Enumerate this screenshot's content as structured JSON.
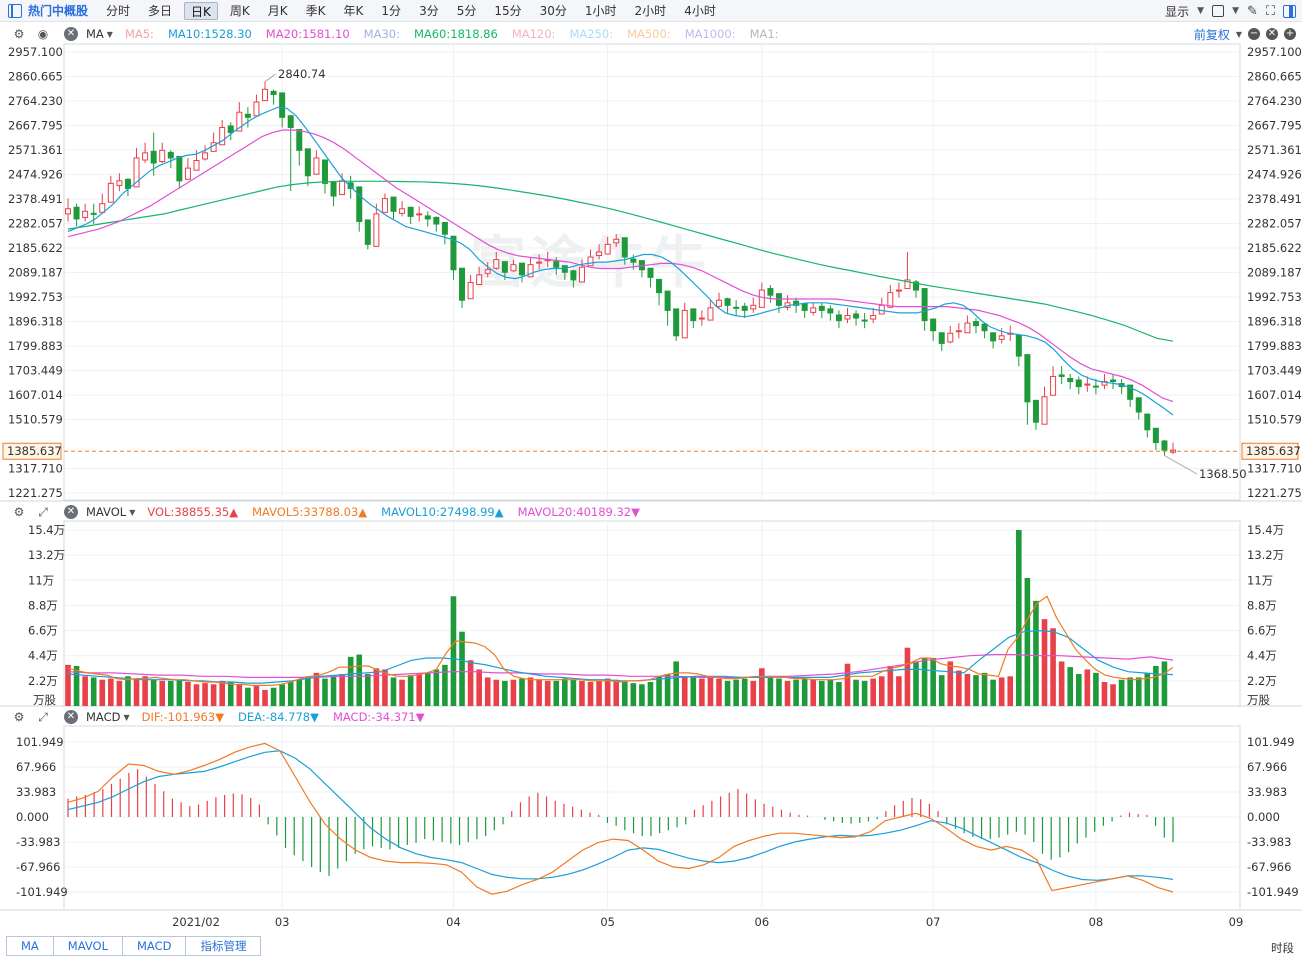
{
  "toolbar": {
    "title": "热门中概股",
    "periods": [
      "分时",
      "多日",
      "日K",
      "周K",
      "月K",
      "季K",
      "年K",
      "1分",
      "3分",
      "5分",
      "15分",
      "30分",
      "1小时",
      "2小时",
      "4小时"
    ],
    "active_period": "日K",
    "display_label": "显示",
    "adjust_label": "前复权"
  },
  "indicators": {
    "main": {
      "name": "MA",
      "items": [
        {
          "label": "MA5:",
          "color": "#f4a3a3"
        },
        {
          "label": "MA10:1528.30",
          "color": "#1aa0d8"
        },
        {
          "label": "MA20:1581.10",
          "color": "#e24ed6"
        },
        {
          "label": "MA30:",
          "color": "#9fb5e8"
        },
        {
          "label": "MA60:1818.86",
          "color": "#15b66b"
        },
        {
          "label": "MA120:",
          "color": "#f4b3c4"
        },
        {
          "label": "MA250:",
          "color": "#a8dcf5"
        },
        {
          "label": "MA500:",
          "color": "#f7cc9c"
        },
        {
          "label": "MA1000:",
          "color": "#c7b6ef"
        },
        {
          "label": "MA1:",
          "color": "#b7b7b7"
        }
      ]
    },
    "volume": {
      "name": "MAVOL",
      "items": [
        {
          "label": "VOL:38855.35▲",
          "color": "#e8414a"
        },
        {
          "label": "MAVOL5:33788.03▲",
          "color": "#f07b25"
        },
        {
          "label": "MAVOL10:27498.99▲",
          "color": "#1aa0d8"
        },
        {
          "label": "MAVOL20:40189.32▼",
          "color": "#e24ed6"
        }
      ]
    },
    "macd": {
      "name": "MACD",
      "items": [
        {
          "label": "DIF:-101.963▼",
          "color": "#f07b25"
        },
        {
          "label": "DEA:-84.778▼",
          "color": "#1aa0d8"
        },
        {
          "label": "MACD:-34.371▼",
          "color": "#e24ed6"
        }
      ]
    }
  },
  "price_axis": [
    "2957.100",
    "2860.665",
    "2764.230",
    "2667.795",
    "2571.361",
    "2474.926",
    "2378.491",
    "2282.057",
    "2185.622",
    "2089.187",
    "1992.753",
    "1896.318",
    "1799.883",
    "1703.449",
    "1607.014",
    "1510.579",
    "1317.710",
    "1221.275"
  ],
  "volume_axis": [
    "15.4万",
    "13.2万",
    "11万",
    "8.8万",
    "6.6万",
    "4.4万",
    "2.2万",
    "万股"
  ],
  "macd_axis": [
    "101.949",
    "67.966",
    "33.983",
    "0.000",
    "-33.983",
    "-67.966",
    "-101.949"
  ],
  "time_axis": [
    "2021/02",
    "03",
    "04",
    "05",
    "06",
    "07",
    "08",
    "09"
  ],
  "time_label": "时段",
  "current_price": "1385.637",
  "max_label": "2840.74",
  "min_label": "1368.50",
  "watermark": "富途牛牛",
  "bottom_tabs": [
    "MA",
    "MAVOL",
    "MACD",
    "指标管理"
  ],
  "chart_data": {
    "type": "candlestick",
    "title": "热门中概股",
    "period": "日K",
    "start_date": "2021-01-22",
    "up_color": "#e8414a",
    "down_color": "#1f9a3b",
    "price_range": [
      1221.275,
      2957.1
    ],
    "volume_range_wan": [
      0,
      15.4
    ],
    "macd_range": [
      -101.949,
      101.949
    ],
    "closes": [
      2340,
      2300,
      2330,
      2320,
      2360,
      2440,
      2450,
      2420,
      2540,
      2560,
      2520,
      2570,
      2540,
      2450,
      2500,
      2530,
      2560,
      2600,
      2660,
      2640,
      2720,
      2700,
      2760,
      2810,
      2790,
      2700,
      2660,
      2570,
      2470,
      2540,
      2440,
      2390,
      2450,
      2420,
      2290,
      2200,
      2320,
      2380,
      2330,
      2340,
      2310,
      2320,
      2300,
      2280,
      2240,
      2100,
      1980,
      2050,
      2080,
      2100,
      2140,
      2090,
      2120,
      2080,
      2120,
      2130,
      2140,
      2110,
      2090,
      2060,
      2110,
      2150,
      2170,
      2200,
      2220,
      2150,
      2130,
      2100,
      2070,
      2010,
      1940,
      1840,
      1940,
      1900,
      1910,
      1950,
      1980,
      1960,
      1950,
      1940,
      1960,
      2020,
      2000,
      1960,
      1970,
      1960,
      1940,
      1950,
      1940,
      1930,
      1900,
      1920,
      1910,
      1900,
      1920,
      1960,
      2010,
      2020,
      2060,
      2020,
      1900,
      1860,
      1810,
      1850,
      1860,
      1890,
      1880,
      1860,
      1820,
      1840,
      1850,
      1760,
      1580,
      1500,
      1600,
      1680,
      1680,
      1660,
      1640,
      1650,
      1640,
      1660,
      1660,
      1640,
      1590,
      1540,
      1470,
      1420,
      1390,
      1390
    ],
    "highs": [
      2380,
      2360,
      2360,
      2360,
      2400,
      2470,
      2480,
      2460,
      2580,
      2600,
      2640,
      2600,
      2570,
      2480,
      2540,
      2570,
      2590,
      2640,
      2690,
      2680,
      2760,
      2740,
      2790,
      2840.74,
      2810,
      2740,
      2710,
      2640,
      2540,
      2570,
      2490,
      2440,
      2480,
      2470,
      2320,
      2240,
      2360,
      2400,
      2380,
      2370,
      2340,
      2350,
      2330,
      2310,
      2280,
      2140,
      2060,
      2080,
      2110,
      2130,
      2170,
      2130,
      2140,
      2120,
      2150,
      2160,
      2170,
      2150,
      2110,
      2100,
      2140,
      2180,
      2200,
      2230,
      2240,
      2190,
      2160,
      2130,
      2100,
      2050,
      1980,
      1900,
      1970,
      1930,
      1940,
      1980,
      2010,
      1990,
      1980,
      1970,
      1990,
      2050,
      2040,
      1990,
      2000,
      1990,
      1970,
      1970,
      1970,
      1960,
      1940,
      1950,
      1940,
      1930,
      1950,
      1990,
      2040,
      2050,
      2170,
      2060,
      1940,
      1900,
      1850,
      1880,
      1890,
      1920,
      1910,
      1890,
      1850,
      1870,
      1880,
      1800,
      1680,
      1560,
      1640,
      1720,
      1720,
      1690,
      1680,
      1680,
      1670,
      1690,
      1690,
      1670,
      1630,
      1590,
      1500,
      1460,
      1430,
      1420
    ],
    "lows": [
      2290,
      2270,
      2290,
      2280,
      2320,
      2400,
      2410,
      2390,
      2500,
      2520,
      2470,
      2520,
      2500,
      2420,
      2460,
      2490,
      2530,
      2570,
      2620,
      2610,
      2680,
      2660,
      2720,
      2770,
      2750,
      2660,
      2410,
      2510,
      2430,
      2500,
      2400,
      2350,
      2400,
      2380,
      2250,
      2180,
      2280,
      2340,
      2300,
      2310,
      2280,
      2290,
      2270,
      2250,
      2200,
      2060,
      1950,
      2010,
      2050,
      2070,
      2100,
      2060,
      2090,
      2050,
      2080,
      2100,
      2110,
      2080,
      2060,
      2030,
      2070,
      2120,
      2140,
      2170,
      2190,
      2120,
      2100,
      2070,
      2030,
      1960,
      1880,
      1820,
      1890,
      1870,
      1880,
      1920,
      1950,
      1930,
      1920,
      1910,
      1930,
      1980,
      1970,
      1930,
      1940,
      1930,
      1910,
      1920,
      1910,
      1900,
      1870,
      1890,
      1880,
      1870,
      1890,
      1930,
      1980,
      1990,
      2030,
      1990,
      1860,
      1820,
      1780,
      1810,
      1830,
      1860,
      1850,
      1830,
      1790,
      1810,
      1820,
      1720,
      1490,
      1470,
      1560,
      1640,
      1650,
      1630,
      1610,
      1620,
      1610,
      1630,
      1630,
      1610,
      1560,
      1510,
      1440,
      1390,
      1368.5,
      1375
    ],
    "volumes_wan": [
      3.6,
      3.5,
      2.6,
      2.5,
      2.3,
      2.4,
      2.2,
      2.6,
      2.4,
      2.6,
      2.3,
      2.2,
      2.2,
      2.3,
      2.1,
      1.9,
      2.0,
      1.9,
      2.2,
      2.1,
      1.9,
      1.6,
      1.8,
      1.4,
      1.6,
      1.9,
      2.1,
      2.3,
      2.6,
      2.9,
      2.4,
      2.6,
      2.8,
      4.3,
      4.5,
      2.8,
      3.3,
      3.2,
      2.5,
      2.3,
      2.7,
      2.8,
      2.9,
      3.2,
      3.6,
      9.6,
      6.5,
      4.0,
      3.2,
      2.5,
      2.3,
      2.2,
      2.3,
      2.4,
      2.5,
      2.3,
      2.2,
      2.2,
      2.4,
      2.3,
      2.2,
      2.1,
      2.2,
      2.4,
      2.3,
      2.1,
      2.0,
      1.9,
      2.1,
      2.6,
      2.8,
      3.9,
      2.6,
      2.5,
      2.4,
      2.6,
      2.4,
      2.2,
      2.3,
      2.4,
      2.2,
      3.3,
      2.6,
      2.4,
      2.2,
      2.3,
      2.4,
      2.3,
      2.2,
      2.3,
      2.1,
      3.7,
      2.3,
      2.2,
      2.4,
      2.6,
      3.5,
      2.6,
      5.1,
      3.9,
      4.2,
      4.2,
      2.7,
      3.9,
      3.1,
      2.8,
      2.7,
      2.9,
      2.3,
      2.5,
      2.6,
      15.4,
      11.2,
      9.2,
      7.6,
      6.8,
      3.9,
      3.4,
      2.8,
      3.2,
      2.9,
      2.1,
      1.9,
      2.3,
      2.5,
      2.5,
      2.9,
      3.5,
      3.9
    ],
    "ma10": [
      2250,
      2265,
      2280,
      2300,
      2330,
      2360,
      2400,
      2430,
      2460,
      2490,
      2510,
      2525,
      2540,
      2550,
      2555,
      2570,
      2590,
      2610,
      2640,
      2665,
      2690,
      2710,
      2725,
      2740,
      2735,
      2705,
      2660,
      2610,
      2560,
      2510,
      2460,
      2425,
      2390,
      2360,
      2335,
      2310,
      2290,
      2270,
      2260,
      2250,
      2240,
      2230,
      2220,
      2205,
      2180,
      2140,
      2110,
      2085,
      2070,
      2065,
      2075,
      2090,
      2100,
      2105,
      2105,
      2110,
      2120,
      2125,
      2130,
      2130,
      2135,
      2140,
      2150,
      2160,
      2160,
      2150,
      2130,
      2100,
      2065,
      2030,
      1995,
      1955,
      1930,
      1920,
      1915,
      1920,
      1930,
      1940,
      1950,
      1960,
      1965,
      1970,
      1970,
      1970,
      1965,
      1960,
      1955,
      1950,
      1945,
      1940,
      1935,
      1930,
      1930,
      1930,
      1940,
      1950,
      1965,
      1970,
      1960,
      1935,
      1900,
      1875,
      1860,
      1850,
      1845,
      1840,
      1830,
      1815,
      1785,
      1745,
      1710,
      1685,
      1670,
      1660,
      1655,
      1650,
      1640,
      1625,
      1605,
      1580,
      1555,
      1528.3
    ],
    "ma20": [
      2230,
      2240,
      2250,
      2260,
      2275,
      2290,
      2310,
      2330,
      2350,
      2375,
      2400,
      2425,
      2450,
      2475,
      2500,
      2525,
      2550,
      2575,
      2600,
      2625,
      2640,
      2650,
      2650,
      2645,
      2635,
      2620,
      2600,
      2575,
      2545,
      2515,
      2485,
      2455,
      2425,
      2400,
      2375,
      2350,
      2325,
      2300,
      2275,
      2250,
      2225,
      2200,
      2180,
      2165,
      2155,
      2150,
      2145,
      2140,
      2135,
      2130,
      2120,
      2110,
      2105,
      2105,
      2105,
      2110,
      2115,
      2120,
      2125,
      2125,
      2120,
      2110,
      2095,
      2075,
      2055,
      2035,
      2015,
      2000,
      1990,
      1985,
      1985,
      1985,
      1985,
      1985,
      1985,
      1985,
      1980,
      1975,
      1970,
      1965,
      1960,
      1955,
      1955,
      1955,
      1955,
      1955,
      1955,
      1950,
      1945,
      1940,
      1930,
      1920,
      1905,
      1890,
      1870,
      1845,
      1815,
      1785,
      1755,
      1730,
      1710,
      1700,
      1690,
      1680,
      1665,
      1645,
      1620,
      1595,
      1581.1
    ],
    "ma60": [
      2260,
      2270,
      2280,
      2290,
      2300,
      2310,
      2320,
      2335,
      2350,
      2365,
      2380,
      2395,
      2410,
      2425,
      2435,
      2442,
      2446,
      2448,
      2448,
      2448,
      2448,
      2447,
      2446,
      2444,
      2440,
      2435,
      2428,
      2420,
      2410,
      2400,
      2390,
      2378,
      2365,
      2352,
      2338,
      2322,
      2305,
      2288,
      2270,
      2252,
      2235,
      2217,
      2200,
      2182,
      2165,
      2150,
      2135,
      2120,
      2107,
      2095,
      2082,
      2070,
      2058,
      2046,
      2035,
      2025,
      2015,
      2005,
      1995,
      1985,
      1975,
      1965,
      1950,
      1935,
      1918.86,
      1900,
      1880,
      1855,
      1830,
      1818.86
    ],
    "mavol5_wan": [
      3.3,
      3.1,
      2.9,
      2.8,
      2.7,
      2.4,
      2.3,
      2.4,
      2.4,
      2.5,
      2.4,
      2.3,
      2.3,
      2.2,
      2.1,
      2.1,
      2.0,
      1.9,
      1.9,
      1.8,
      1.8,
      1.8,
      1.9,
      2.1,
      2.4,
      2.6,
      2.7,
      3.0,
      3.4,
      3.4,
      3.5,
      3.5,
      3.1,
      2.8,
      2.6,
      2.6,
      2.7,
      2.9,
      3.2,
      4.6,
      5.7,
      5.6,
      5.5,
      5.2,
      4.5,
      3.2,
      2.6,
      2.4,
      2.3,
      2.3,
      2.3,
      2.3,
      2.3,
      2.3,
      2.2,
      2.2,
      2.2,
      2.1,
      2.2,
      2.2,
      2.3,
      2.6,
      2.8,
      2.9,
      2.9,
      2.8,
      2.6,
      2.5,
      2.4,
      2.4,
      2.5,
      2.6,
      2.6,
      2.5,
      2.5,
      2.4,
      2.4,
      2.3,
      2.3,
      2.3,
      2.4,
      2.6,
      2.6,
      2.6,
      3.0,
      3.3,
      3.5,
      3.8,
      4.2,
      4.2,
      3.7,
      3.5,
      3.4,
      3.2,
      2.8,
      2.7,
      2.6,
      5.0,
      6.0,
      7.6,
      9.0,
      9.6,
      7.7,
      6.3,
      4.9,
      4.0,
      3.2,
      2.7,
      2.5,
      2.4,
      2.3,
      2.4,
      2.5,
      2.8,
      3.38
    ],
    "mavol10_wan": [
      2.8,
      2.7,
      2.6,
      2.5,
      2.4,
      2.3,
      2.3,
      2.3,
      2.2,
      2.2,
      2.1,
      2.1,
      2.0,
      2.0,
      2.1,
      2.2,
      2.4,
      2.6,
      2.7,
      2.8,
      2.9,
      3.0,
      3.5,
      4.0,
      4.2,
      4.2,
      4.1,
      3.8,
      3.6,
      3.3,
      3.0,
      2.8,
      2.6,
      2.5,
      2.4,
      2.3,
      2.3,
      2.2,
      2.2,
      2.3,
      2.4,
      2.5,
      2.6,
      2.6,
      2.6,
      2.5,
      2.5,
      2.5,
      2.5,
      2.5,
      2.5,
      2.5,
      2.7,
      2.9,
      3.0,
      3.1,
      3.2,
      3.2,
      3.1,
      3.0,
      2.9,
      4.0,
      5.0,
      6.0,
      6.5,
      6.6,
      6.5,
      6.0,
      5.0,
      4.0,
      3.4,
      3.0,
      2.9,
      2.8,
      2.75
    ],
    "mavol20_wan": [
      3.0,
      2.9,
      2.9,
      2.8,
      2.7,
      2.7,
      2.6,
      2.6,
      2.5,
      2.5,
      2.5,
      2.5,
      2.6,
      2.6,
      2.7,
      2.8,
      2.9,
      3.0,
      3.0,
      2.9,
      2.9,
      2.8,
      2.8,
      2.7,
      2.7,
      2.6,
      2.6,
      2.6,
      2.5,
      2.5,
      2.5,
      2.6,
      2.6,
      2.7,
      2.8,
      3.0,
      3.3,
      3.6,
      4.0,
      4.2,
      4.4,
      4.5,
      4.5,
      4.4,
      4.4,
      4.3,
      4.2,
      4.1,
      4.3,
      4.02
    ],
    "dif": [
      20,
      26,
      35,
      55,
      72,
      70,
      62,
      58,
      63,
      70,
      78,
      88,
      95,
      100,
      90,
      55,
      20,
      -10,
      -30,
      -45,
      -55,
      -60,
      -62,
      -62,
      -63,
      -65,
      -75,
      -95,
      -105,
      -101,
      -92,
      -85,
      -75,
      -60,
      -45,
      -35,
      -30,
      -32,
      -45,
      -60,
      -68,
      -70,
      -65,
      -55,
      -40,
      -32,
      -26,
      -22,
      -22,
      -24,
      -26,
      -28,
      -27,
      -20,
      -5,
      0,
      5,
      -2,
      -15,
      -30,
      -40,
      -45,
      -40,
      -45,
      -58,
      -100,
      -96,
      -92,
      -88,
      -84,
      -80,
      -86,
      -96,
      -101.963
    ],
    "dea": [
      10,
      15,
      20,
      28,
      38,
      48,
      55,
      58,
      60,
      62,
      68,
      75,
      82,
      88,
      90,
      80,
      65,
      45,
      25,
      5,
      -15,
      -30,
      -42,
      -50,
      -55,
      -58,
      -62,
      -70,
      -78,
      -82,
      -84,
      -84,
      -82,
      -78,
      -72,
      -64,
      -55,
      -45,
      -42,
      -44,
      -50,
      -56,
      -60,
      -62,
      -60,
      -55,
      -48,
      -40,
      -34,
      -30,
      -27,
      -25,
      -26,
      -25,
      -22,
      -18,
      -12,
      -5,
      -8,
      -15,
      -25,
      -35,
      -45,
      -55,
      -62,
      -72,
      -80,
      -85,
      -86,
      -84,
      -80,
      -80,
      -82,
      -84.778
    ],
    "macd_hist": [
      25,
      28,
      30,
      34,
      38,
      45,
      52,
      60,
      65,
      55,
      45,
      35,
      25,
      20,
      15,
      17,
      22,
      27,
      30,
      32,
      31,
      26,
      17,
      -10,
      -25,
      -42,
      -52,
      -60,
      -68,
      -75,
      -80,
      -70,
      -60,
      -50,
      -44,
      -40,
      -42,
      -44,
      -42,
      -38,
      -35,
      -30,
      -32,
      -34,
      -36,
      -38,
      -34,
      -30,
      -26,
      -18,
      -10,
      8,
      20,
      28,
      33,
      28,
      22,
      18,
      14,
      10,
      6,
      3,
      -8,
      -12,
      -18,
      -22,
      -26,
      -26,
      -22,
      -18,
      -14,
      -10,
      10,
      16,
      22,
      28,
      33,
      38,
      32,
      24,
      18,
      14,
      10,
      6,
      3,
      2,
      0,
      -4,
      -6,
      -8,
      -9,
      -8,
      -6,
      -3,
      8,
      16,
      22,
      26,
      24,
      18,
      8,
      -10,
      -16,
      -22,
      -27,
      -30,
      -30,
      -28,
      -24,
      -20,
      -24,
      -34,
      -50,
      -58,
      -55,
      -48,
      -36,
      -28,
      -20,
      -12,
      -6,
      2,
      6,
      4,
      3,
      -12,
      -28,
      -34.371
    ]
  }
}
